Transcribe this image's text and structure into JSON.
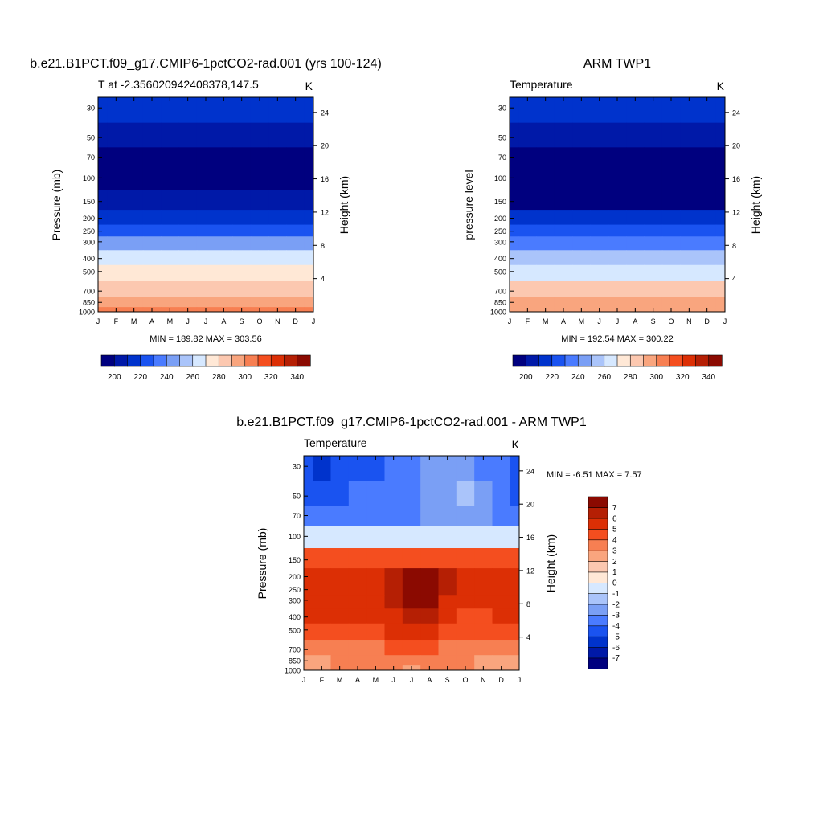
{
  "colors": {
    "temperature_scale": [
      "#00007f",
      "#0019a8",
      "#0033cc",
      "#1a53f0",
      "#4a7bff",
      "#7a9ff5",
      "#aac4fa",
      "#d6e8ff",
      "#ffe8d6",
      "#fcc8b0",
      "#f9a57e",
      "#f77f52",
      "#f44e1f",
      "#dc2f05",
      "#b51f04",
      "#8b0a01"
    ],
    "difference_scale": [
      "#00007f",
      "#0019a8",
      "#0033cc",
      "#1a53f0",
      "#4a7bff",
      "#7a9ff5",
      "#aac4fa",
      "#d6e8ff",
      "#ffe8d6",
      "#fcc8b0",
      "#f9a57e",
      "#f77f52",
      "#f44e1f",
      "#dc2f05",
      "#b51f04",
      "#8b0a01"
    ]
  },
  "chart_data": [
    {
      "type": "heatmap",
      "title": "b.e21.B1PCT.f09_g17.CMIP6-1pctCO2-rad.001 (yrs 100-124)",
      "subtitle_left": "T at -2.356020942408378,147.5",
      "units": "K",
      "ylabel": "Pressure (mb)",
      "ylabel_right": "Height (km)",
      "x_ticks": [
        "J",
        "F",
        "M",
        "A",
        "M",
        "J",
        "J",
        "A",
        "S",
        "O",
        "N",
        "D",
        "J"
      ],
      "y_ticks": [
        "30",
        "50",
        "70",
        "100",
        "150",
        "200",
        "250",
        "300",
        "400",
        "500",
        "700",
        "850",
        "1000"
      ],
      "y_ticks_right": [
        "24",
        "20",
        "16",
        "12",
        "8",
        "4"
      ],
      "ylim": [
        1000,
        25
      ],
      "stats": "MIN = 189.82 MAX = 303.56",
      "levels": [
        190,
        200,
        210,
        220,
        230,
        240,
        250,
        260,
        270,
        280,
        290,
        300,
        310,
        320,
        330,
        340
      ],
      "colorbar_labels": [
        "200",
        "220",
        "240",
        "260",
        "280",
        "300",
        "320",
        "340"
      ],
      "values": [
        [
          218,
          217,
          216,
          215,
          213,
          212,
          211,
          210,
          211,
          212,
          214,
          216,
          218
        ],
        [
          206,
          205,
          204,
          203,
          202,
          201,
          200,
          200,
          201,
          202,
          204,
          205,
          206
        ],
        [
          199,
          198,
          197,
          196,
          196,
          195,
          195,
          195,
          195,
          196,
          197,
          198,
          199
        ],
        [
          193,
          193,
          192,
          192,
          192,
          192,
          192,
          192,
          192,
          192,
          192,
          193,
          193
        ],
        [
          204,
          204,
          204,
          204,
          204,
          204,
          204,
          204,
          204,
          204,
          204,
          204,
          204
        ],
        [
          217,
          217,
          217,
          217,
          217,
          217,
          217,
          217,
          217,
          217,
          217,
          217,
          217
        ],
        [
          229,
          229,
          229,
          229,
          229,
          229,
          229,
          229,
          229,
          229,
          229,
          229,
          229
        ],
        [
          241,
          241,
          241,
          241,
          241,
          241,
          241,
          241,
          241,
          241,
          241,
          241,
          241
        ],
        [
          260,
          260,
          260,
          260,
          260,
          260,
          260,
          260,
          260,
          260,
          260,
          260,
          260
        ],
        [
          273,
          273,
          273,
          273,
          273,
          273,
          273,
          273,
          273,
          273,
          273,
          273,
          273
        ],
        [
          288,
          288,
          288,
          288,
          288,
          288,
          288,
          288,
          288,
          288,
          288,
          288,
          288
        ],
        [
          296,
          296,
          296,
          296,
          296,
          296,
          296,
          296,
          296,
          296,
          296,
          296,
          296
        ],
        [
          303,
          303,
          303,
          303,
          303,
          303,
          303,
          303,
          303,
          303,
          303,
          303,
          303
        ]
      ]
    },
    {
      "type": "heatmap",
      "title": "ARM TWP1",
      "subtitle_left": "Temperature",
      "units": "K",
      "ylabel": "pressure level",
      "ylabel_right": "Height (km)",
      "x_ticks": [
        "J",
        "F",
        "M",
        "A",
        "M",
        "J",
        "J",
        "A",
        "S",
        "O",
        "N",
        "D",
        "J"
      ],
      "y_ticks": [
        "30",
        "50",
        "70",
        "100",
        "150",
        "200",
        "250",
        "300",
        "400",
        "500",
        "700",
        "850",
        "1000"
      ],
      "y_ticks_right": [
        "24",
        "20",
        "16",
        "12",
        "8",
        "4"
      ],
      "ylim": [
        1000,
        25
      ],
      "stats": "MIN = 192.54 MAX = 300.22",
      "levels": [
        190,
        200,
        210,
        220,
        230,
        240,
        250,
        260,
        270,
        280,
        290,
        300,
        310,
        320,
        330,
        340
      ],
      "colorbar_labels": [
        "200",
        "220",
        "240",
        "260",
        "280",
        "300",
        "320",
        "340"
      ],
      "values": [
        [
          215,
          215,
          214,
          214,
          213,
          213,
          212,
          212,
          212,
          213,
          213,
          214,
          215
        ],
        [
          204,
          204,
          203,
          203,
          202,
          202,
          201,
          201,
          201,
          202,
          203,
          203,
          204
        ],
        [
          198,
          198,
          197,
          197,
          196,
          196,
          195,
          195,
          196,
          197,
          197,
          198,
          198
        ],
        [
          193,
          193,
          193,
          193,
          193,
          193,
          193,
          193,
          193,
          193,
          193,
          193,
          193
        ],
        [
          199,
          199,
          199,
          199,
          199,
          199,
          199,
          199,
          199,
          199,
          199,
          199,
          199
        ],
        [
          213,
          213,
          213,
          213,
          213,
          213,
          213,
          213,
          213,
          213,
          213,
          213,
          213
        ],
        [
          224,
          224,
          224,
          224,
          224,
          224,
          224,
          224,
          224,
          224,
          224,
          224,
          224
        ],
        [
          235,
          235,
          235,
          235,
          235,
          235,
          235,
          235,
          235,
          235,
          235,
          235,
          235
        ],
        [
          255,
          255,
          255,
          255,
          255,
          255,
          255,
          255,
          255,
          255,
          255,
          255,
          255
        ],
        [
          268,
          268,
          268,
          268,
          268,
          268,
          268,
          268,
          268,
          268,
          268,
          268,
          268
        ],
        [
          283,
          283,
          283,
          283,
          283,
          283,
          283,
          283,
          283,
          283,
          283,
          283,
          283
        ],
        [
          293,
          293,
          293,
          293,
          293,
          293,
          293,
          293,
          293,
          293,
          293,
          293,
          293
        ],
        [
          299,
          299,
          299,
          299,
          299,
          299,
          299,
          299,
          299,
          299,
          299,
          299,
          299
        ]
      ]
    },
    {
      "type": "heatmap",
      "title": "b.e21.B1PCT.f09_g17.CMIP6-1pctCO2-rad.001 - ARM TWP1",
      "subtitle_left": "Temperature",
      "units": "K",
      "ylabel": "Pressure (mb)",
      "ylabel_right": "Height (km)",
      "x_ticks": [
        "J",
        "F",
        "M",
        "A",
        "M",
        "J",
        "J",
        "A",
        "S",
        "O",
        "N",
        "D",
        "J"
      ],
      "y_ticks": [
        "30",
        "50",
        "70",
        "100",
        "150",
        "200",
        "250",
        "300",
        "400",
        "500",
        "700",
        "850",
        "1000"
      ],
      "y_ticks_right": [
        "24",
        "20",
        "16",
        "12",
        "8",
        "4"
      ],
      "ylim": [
        1000,
        25
      ],
      "stats": "MIN =  -6.51 MAX =   7.57",
      "levels": [
        -8,
        -7,
        -6,
        -5,
        -4,
        -3,
        -2,
        -1,
        0,
        1,
        2,
        3,
        4,
        5,
        6,
        7
      ],
      "colorbar_labels": [
        "-7",
        "-6",
        "-5",
        "-4",
        "-3",
        "-2",
        "-1",
        "0",
        "1",
        "2",
        "3",
        "4",
        "5",
        "6",
        "7"
      ],
      "values": [
        [
          -5,
          -6,
          -5,
          -5,
          -5,
          -4,
          -4,
          -3,
          -3,
          -3,
          -4,
          -4,
          -5
        ],
        [
          -5,
          -5,
          -5,
          -4,
          -4,
          -4,
          -4,
          -3,
          -3,
          -2,
          -3,
          -4,
          -5
        ],
        [
          -4,
          -4,
          -4,
          -4,
          -4,
          -4,
          -4,
          -3,
          -3,
          -2.5,
          -3,
          -4,
          -4
        ],
        [
          -1,
          -1,
          -1,
          -1,
          -1,
          -1,
          -1,
          -1,
          -1,
          -1,
          -1,
          -1,
          -1
        ],
        [
          4,
          4,
          4.5,
          4.5,
          4.5,
          4.5,
          4.5,
          4.5,
          4.5,
          4.5,
          4.5,
          4.5,
          4
        ],
        [
          5.5,
          5.5,
          5.5,
          5.5,
          5.5,
          6,
          7,
          7,
          6,
          5.5,
          5,
          5,
          5.5
        ],
        [
          5.5,
          5.5,
          5.5,
          5.5,
          5.5,
          6,
          7.2,
          7.3,
          6,
          5.5,
          5,
          5,
          5.5
        ],
        [
          5.5,
          5.5,
          5.5,
          5.5,
          5.5,
          6,
          7,
          7,
          5.5,
          5,
          5,
          5,
          5.5
        ],
        [
          5,
          5,
          5,
          5,
          5,
          5,
          6,
          6,
          5,
          4.5,
          4.5,
          5,
          5
        ],
        [
          4.5,
          4.5,
          4.5,
          4.5,
          4.5,
          5,
          5,
          5,
          4.5,
          4.5,
          4.5,
          4.5,
          4.5
        ],
        [
          3.5,
          3.5,
          3.5,
          3.5,
          3.5,
          4,
          4,
          4,
          3.5,
          3,
          3,
          3,
          3.5
        ],
        [
          2,
          2.5,
          3,
          3,
          3,
          3,
          3,
          3,
          3,
          3,
          2,
          2.5,
          2.5
        ],
        [
          2,
          2.5,
          3,
          3,
          3,
          3,
          2,
          3,
          3,
          3,
          2,
          2.5,
          2
        ]
      ]
    }
  ]
}
